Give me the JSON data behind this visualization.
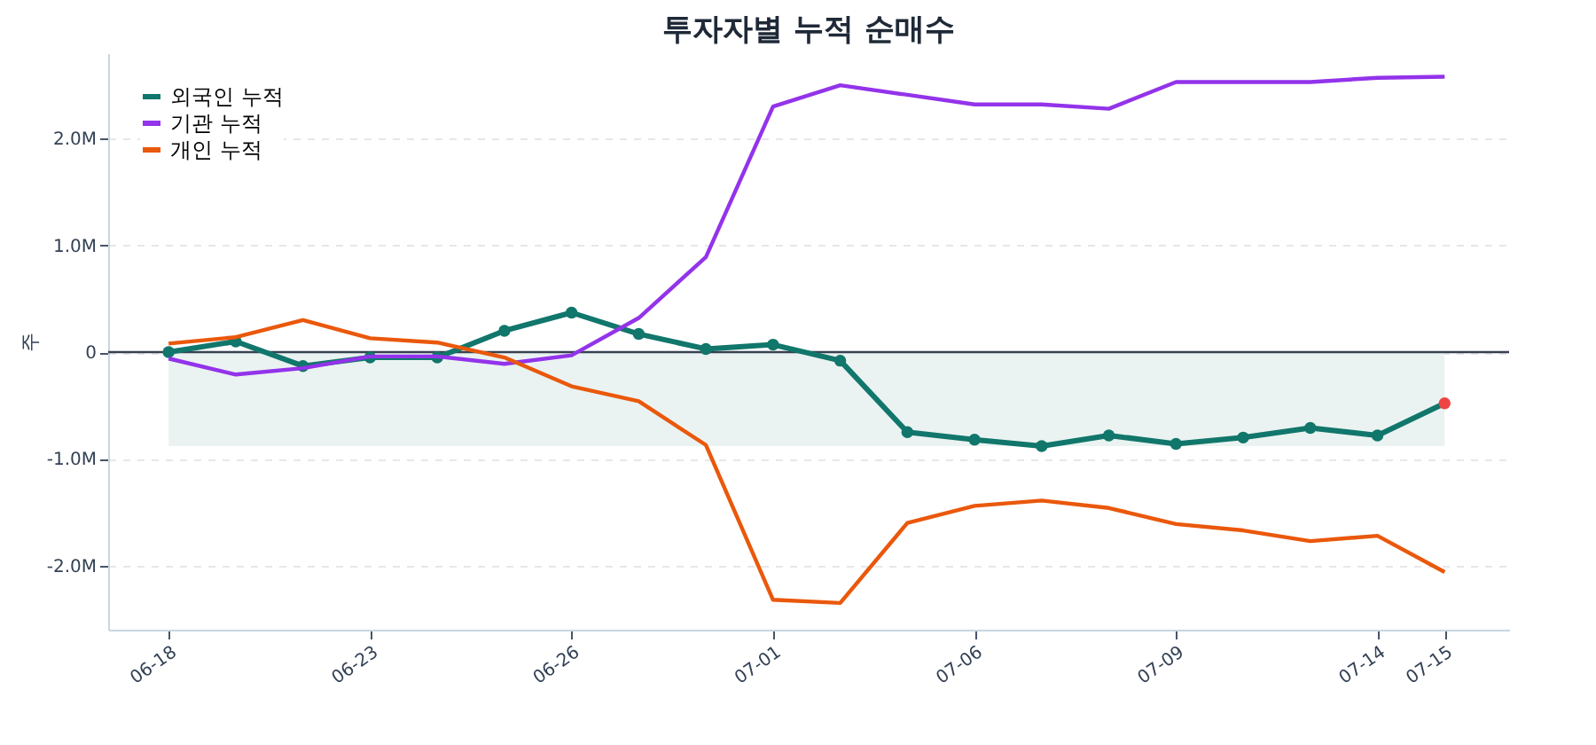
{
  "chart_data": {
    "type": "line",
    "title": "투자자별 누적 순매수",
    "ylabel": "주",
    "categories": [
      "06-18",
      null,
      null,
      "06-23",
      null,
      null,
      "06-26",
      null,
      null,
      "07-01",
      null,
      null,
      "07-06",
      null,
      null,
      "07-09",
      null,
      null,
      "07-14",
      "07-15"
    ],
    "series": [
      {
        "name": "외국인 누적",
        "color": "#11766b",
        "marker": "circle",
        "colors": [
          "#11766b",
          "#11766b",
          "#11766b",
          "#11766b",
          "#11766b",
          "#11766b",
          "#11766b",
          "#11766b",
          "#11766b",
          "#11766b",
          "#11766b",
          "#11766b",
          "#11766b",
          "#11766b",
          "#11766b",
          "#11766b",
          "#11766b",
          "#11766b",
          "#11766b",
          "#ef4444"
        ],
        "values": [
          0,
          100000,
          -130000,
          -50000,
          -50000,
          200000,
          370000,
          170000,
          30000,
          70000,
          -80000,
          -750000,
          -820000,
          -880000,
          -780000,
          -860000,
          -800000,
          -710000,
          -780000,
          -480000
        ]
      },
      {
        "name": "기관 누적",
        "color": "#9333ea",
        "values": [
          -60000,
          -210000,
          -150000,
          -40000,
          -40000,
          -110000,
          -30000,
          320000,
          890000,
          2300000,
          2500000,
          2410000,
          2320000,
          2320000,
          2280000,
          2530000,
          2530000,
          2530000,
          2570000,
          2580000
        ]
      },
      {
        "name": "개인 누적",
        "color": "#ea580c",
        "values": [
          80000,
          140000,
          300000,
          130000,
          90000,
          -50000,
          -320000,
          -460000,
          -870000,
          -2320000,
          -2350000,
          -1600000,
          -1440000,
          -1390000,
          -1460000,
          -1610000,
          -1670000,
          -1770000,
          -1720000,
          -2060000
        ]
      }
    ],
    "ylim": [
      -2600000,
      2800000
    ],
    "yticks": [
      {
        "value": -2000000,
        "label": "-2.0M"
      },
      {
        "value": -1000000,
        "label": "-1.0M"
      },
      0,
      {
        "value": 1000000,
        "label": "1.0M"
      },
      {
        "value": 2000000,
        "label": "2.0M"
      }
    ],
    "ref_lines": [
      {
        "axis": "y",
        "value": 0,
        "color": "#374151"
      }
    ],
    "bands": [
      {
        "axis": "y",
        "from": -880000,
        "to": 0,
        "color": "#e8f2f0"
      }
    ],
    "grid": "y",
    "legend": "top left",
    "line_style": "solid"
  }
}
